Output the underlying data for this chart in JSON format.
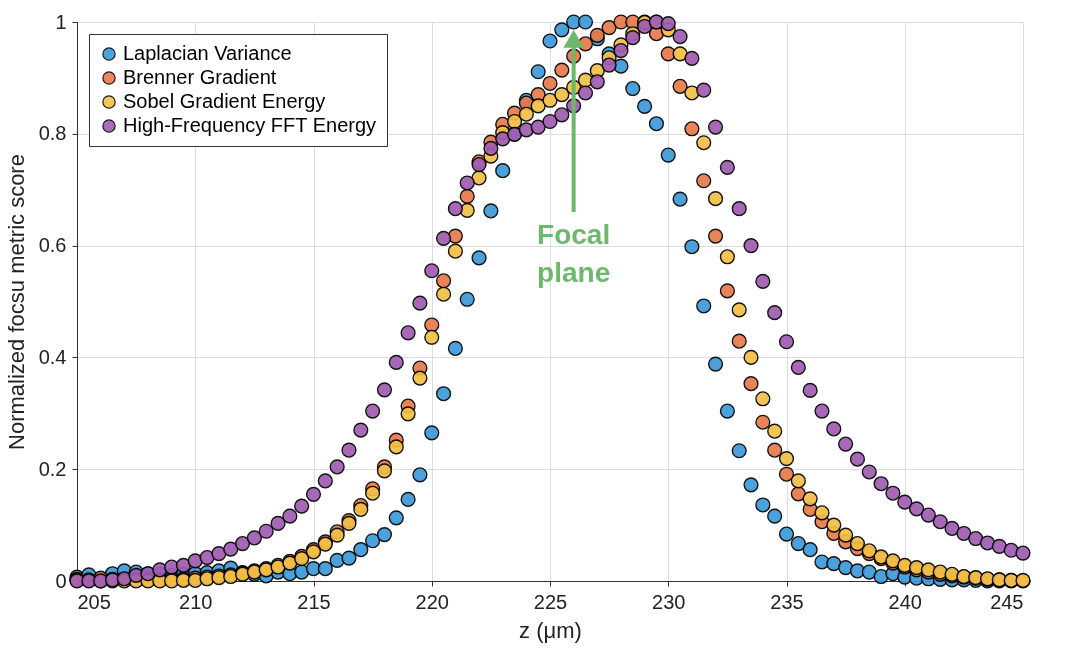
{
  "chart_data": {
    "type": "scatter",
    "xlabel": "z (μm)",
    "ylabel": "Normalized focsu metric score",
    "x": [
      205,
      205.5,
      206,
      206.5,
      207,
      207.5,
      208,
      208.5,
      209,
      209.5,
      210,
      210.5,
      211,
      211.5,
      212,
      212.5,
      213,
      213.5,
      214,
      214.5,
      215,
      215.5,
      216,
      216.5,
      217,
      217.5,
      218,
      218.5,
      219,
      219.5,
      220,
      220.5,
      221,
      221.5,
      222,
      222.5,
      223,
      223.5,
      224,
      224.5,
      225,
      225.5,
      226,
      226.5,
      227,
      227.5,
      228,
      228.5,
      229,
      229.5,
      230,
      230.5,
      231,
      231.5,
      232,
      232.5,
      233,
      233.5,
      234,
      234.5,
      235,
      235.5,
      236,
      236.5,
      237,
      237.5,
      238,
      238.5,
      239,
      239.5,
      240,
      240.5,
      241,
      241.5,
      242,
      242.5,
      243,
      243.5,
      244,
      244.5,
      245
    ],
    "xlim": [
      205,
      245
    ],
    "xticks": [
      205,
      210,
      215,
      220,
      225,
      230,
      235,
      240,
      245
    ],
    "ylim": [
      0,
      1
    ],
    "yticks": [
      0,
      0.2,
      0.4,
      0.6,
      0.8,
      1
    ],
    "grid": true,
    "legend": "top left",
    "marker": "circle",
    "series": [
      {
        "name": "Laplacian Variance",
        "color": "#3b9ad9",
        "values": [
          0.007,
          0.011,
          0.002,
          0.013,
          0.018,
          0.016,
          0.013,
          0.012,
          0.01,
          0.012,
          0.013,
          0.015,
          0.018,
          0.023,
          0.015,
          0.012,
          0.009,
          0.016,
          0.013,
          0.016,
          0.022,
          0.022,
          0.037,
          0.041,
          0.056,
          0.072,
          0.083,
          0.113,
          0.146,
          0.19,
          0.265,
          0.335,
          0.416,
          0.504,
          0.578,
          0.662,
          0.734,
          0.8,
          0.86,
          0.911,
          0.966,
          0.986,
          1.0,
          1.0,
          0.97,
          0.943,
          0.921,
          0.881,
          0.849,
          0.818,
          0.762,
          0.683,
          0.598,
          0.492,
          0.388,
          0.304,
          0.233,
          0.172,
          0.136,
          0.116,
          0.084,
          0.067,
          0.056,
          0.034,
          0.031,
          0.024,
          0.018,
          0.016,
          0.008,
          0.013,
          0.007,
          0.005,
          0.004,
          0.003,
          0.002,
          0.002,
          0.001,
          0,
          0,
          0,
          null
        ]
      },
      {
        "name": "Brenner Gradient",
        "color": "#e8794a",
        "values": [
          0.003,
          0.002,
          0.005,
          0.003,
          0.002,
          0.002,
          0.002,
          0.002,
          0.003,
          0.004,
          0.005,
          0.007,
          0.009,
          0.011,
          0.014,
          0.018,
          0.022,
          0.028,
          0.035,
          0.044,
          0.056,
          0.07,
          0.088,
          0.108,
          0.135,
          0.165,
          0.204,
          0.252,
          0.313,
          0.381,
          0.458,
          0.537,
          0.617,
          0.688,
          0.75,
          0.785,
          0.817,
          0.837,
          0.855,
          0.87,
          0.89,
          0.914,
          0.939,
          0.961,
          0.976,
          0.99,
          1.0,
          1.0,
          1.0,
          0.979,
          0.943,
          0.885,
          0.809,
          0.716,
          0.617,
          0.519,
          0.429,
          0.353,
          0.284,
          0.234,
          0.191,
          0.156,
          0.128,
          0.106,
          0.085,
          0.07,
          0.058,
          0.049,
          0.04,
          0.032,
          0.025,
          0.02,
          0.016,
          0.012,
          0.009,
          0.007,
          0.005,
          0.003,
          0.002,
          0.001,
          0.0
        ]
      },
      {
        "name": "Sobel Gradient Energy",
        "color": "#f2c045",
        "values": [
          0.002,
          null,
          0.0,
          0.0,
          0.0,
          0.0,
          0.0,
          0.0,
          0.0,
          0.001,
          0.001,
          0.004,
          0.006,
          0.008,
          0.012,
          0.016,
          0.02,
          0.025,
          0.032,
          0.04,
          0.052,
          0.066,
          0.082,
          0.103,
          0.128,
          0.157,
          0.197,
          0.24,
          0.299,
          0.363,
          0.436,
          0.513,
          0.59,
          0.663,
          0.721,
          0.76,
          0.802,
          0.822,
          0.835,
          0.85,
          0.86,
          0.87,
          0.883,
          0.896,
          0.913,
          0.936,
          0.959,
          0.979,
          0.999,
          1.0,
          0.986,
          0.943,
          0.873,
          0.784,
          0.684,
          0.58,
          0.485,
          0.4,
          0.326,
          0.268,
          0.219,
          0.179,
          0.147,
          0.122,
          0.1,
          0.082,
          0.067,
          0.054,
          0.043,
          0.036,
          0.028,
          0.024,
          0.02,
          0.016,
          0.012,
          0.008,
          0.006,
          0.004,
          0.002,
          0.001,
          0.001
        ]
      },
      {
        "name": "High-Frequency FFT Energy",
        "color": "#a05cb3",
        "values": [
          0.0,
          0.0,
          0.0,
          0.002,
          0.004,
          0.01,
          0.013,
          0.02,
          0.025,
          0.028,
          0.036,
          0.042,
          0.049,
          0.057,
          0.067,
          0.077,
          0.089,
          0.103,
          0.116,
          0.134,
          0.155,
          0.179,
          0.204,
          0.234,
          0.27,
          0.304,
          0.342,
          0.391,
          0.444,
          0.497,
          0.555,
          0.613,
          0.666,
          0.712,
          0.745,
          0.774,
          0.791,
          0.799,
          0.807,
          0.812,
          0.822,
          0.834,
          0.85,
          0.873,
          0.893,
          0.923,
          0.949,
          0.972,
          0.992,
          1.0,
          0.997,
          0.974,
          0.935,
          0.878,
          0.812,
          0.74,
          0.666,
          0.6,
          0.536,
          0.48,
          0.428,
          0.382,
          0.341,
          0.304,
          0.272,
          0.245,
          0.218,
          0.195,
          0.174,
          0.157,
          0.141,
          0.129,
          0.118,
          0.106,
          0.094,
          0.085,
          0.076,
          0.068,
          0.062,
          0.055,
          0.05
        ]
      }
    ],
    "annotations": [
      {
        "text": "Focal plane",
        "x": 226,
        "y": 0.97
      }
    ]
  }
}
